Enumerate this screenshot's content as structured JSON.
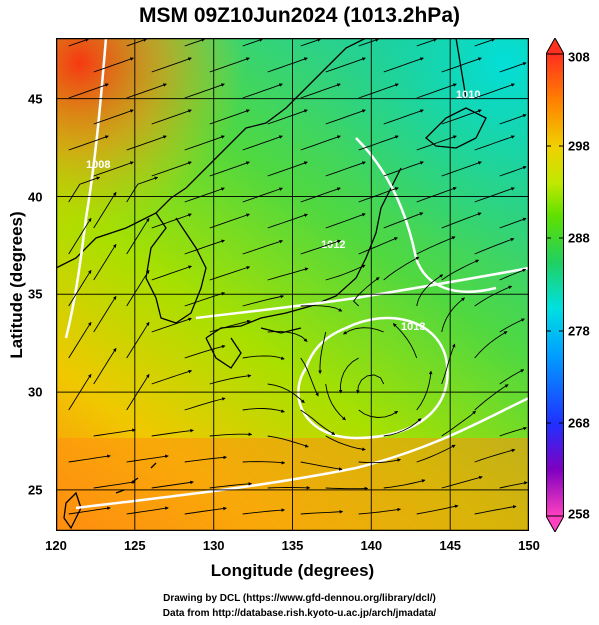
{
  "title": "MSM 09Z10Jun2024 (1013.2hPa)",
  "xlabel": "Longitude (degrees)",
  "ylabel": "Latitude  (degrees)",
  "credits": {
    "line1": "Drawing by DCL (https://www.gfd-dennou.org/library/dcl/)",
    "line2": "Data from http://database.rish.kyoto-u.ac.jp/arch/jmadata/"
  },
  "map": {
    "lon_range": [
      120,
      150
    ],
    "lat_range": [
      22.4,
      47.6
    ],
    "xticks": [
      "120",
      "125",
      "130",
      "135",
      "140",
      "145",
      "150"
    ],
    "yticks": [
      "25",
      "30",
      "35",
      "40",
      "45"
    ],
    "field": "temperature (K) shaded, streamlines overlaid, white isobars",
    "isobar_labels": [
      "1008",
      "1010",
      "1012",
      "1013",
      "1014"
    ]
  },
  "colorbar": {
    "range": [
      258,
      308
    ],
    "labels": [
      "308",
      "298",
      "288",
      "278",
      "268",
      "258"
    ],
    "colors": [
      "#ff40c0",
      "#8000c0",
      "#2030ff",
      "#00a0ff",
      "#00e0e0",
      "#20d060",
      "#60e000",
      "#c0e800",
      "#f0d000",
      "#ff8000",
      "#ff3020"
    ]
  }
}
